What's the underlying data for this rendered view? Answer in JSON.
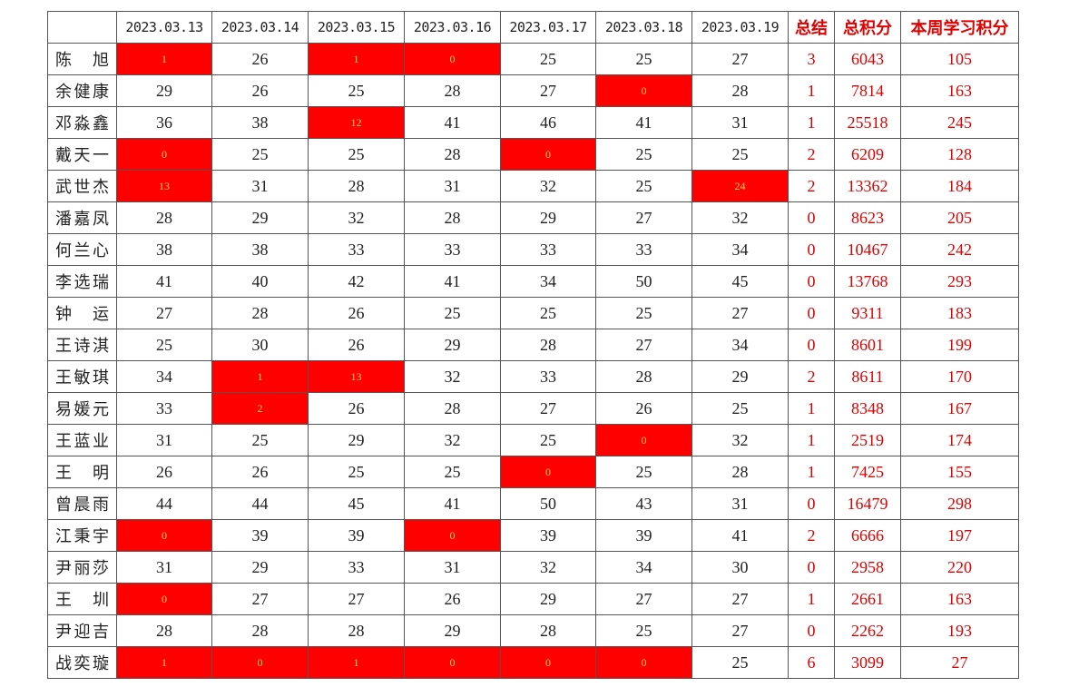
{
  "table": {
    "header": [
      "2023.03.13",
      "2023.03.14",
      "2023.03.15",
      "2023.03.16",
      "2023.03.17",
      "2023.03.18",
      "2023.03.19",
      "总结",
      "总积分",
      "本周学习积分"
    ],
    "highlight": {
      "below": 25,
      "color": "#ff0000"
    },
    "rows": [
      [
        "陈 旭",
        1,
        26,
        1,
        0,
        25,
        25,
        27,
        3,
        6043,
        105
      ],
      [
        "余健康",
        29,
        26,
        25,
        28,
        27,
        0,
        28,
        1,
        7814,
        163
      ],
      [
        "邓淼鑫",
        36,
        38,
        12,
        41,
        46,
        41,
        31,
        1,
        25518,
        245
      ],
      [
        "戴天一",
        0,
        25,
        25,
        28,
        0,
        25,
        25,
        2,
        6209,
        128
      ],
      [
        "武世杰",
        13,
        31,
        28,
        31,
        32,
        25,
        24,
        2,
        13362,
        184
      ],
      [
        "潘嘉凤",
        28,
        29,
        32,
        28,
        29,
        27,
        32,
        0,
        8623,
        205
      ],
      [
        "何兰心",
        38,
        38,
        33,
        33,
        33,
        33,
        34,
        0,
        10467,
        242
      ],
      [
        "李选瑞",
        41,
        40,
        42,
        41,
        34,
        50,
        45,
        0,
        13768,
        293
      ],
      [
        "钟 运",
        27,
        28,
        26,
        25,
        25,
        25,
        27,
        0,
        9311,
        183
      ],
      [
        "王诗淇",
        25,
        30,
        26,
        29,
        28,
        27,
        34,
        0,
        8601,
        199
      ],
      [
        "王敏琪",
        34,
        1,
        13,
        32,
        33,
        28,
        29,
        2,
        8611,
        170
      ],
      [
        "易媛元",
        33,
        2,
        26,
        28,
        27,
        26,
        25,
        1,
        8348,
        167
      ],
      [
        "王蓝业",
        31,
        25,
        29,
        32,
        25,
        0,
        32,
        1,
        2519,
        174
      ],
      [
        "王 明",
        26,
        26,
        25,
        25,
        0,
        25,
        28,
        1,
        7425,
        155
      ],
      [
        "曾晨雨",
        44,
        44,
        45,
        41,
        50,
        43,
        31,
        0,
        16479,
        298
      ],
      [
        "江秉宇",
        0,
        39,
        39,
        0,
        39,
        39,
        41,
        2,
        6666,
        197
      ],
      [
        "尹丽莎",
        31,
        29,
        33,
        31,
        32,
        34,
        30,
        0,
        2958,
        220
      ],
      [
        "王 圳",
        0,
        27,
        27,
        26,
        29,
        27,
        27,
        1,
        2661,
        163
      ],
      [
        "尹迎吉",
        28,
        28,
        28,
        29,
        28,
        25,
        27,
        0,
        2262,
        193
      ],
      [
        "战奕璇",
        1,
        0,
        1,
        0,
        0,
        0,
        25,
        6,
        3099,
        27
      ]
    ]
  }
}
